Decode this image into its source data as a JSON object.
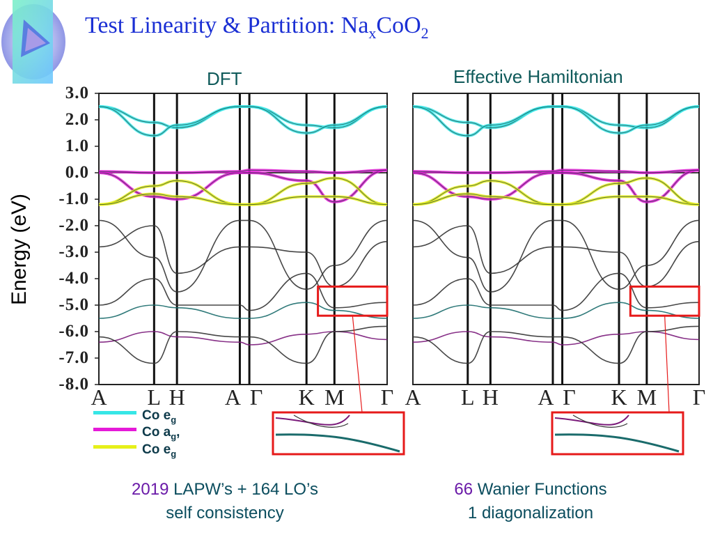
{
  "slide": {
    "title_main": "Test Linearity & Partition: Na",
    "title_sub_x": "x",
    "title_mid": "CoO",
    "title_sub_2": "2"
  },
  "panels": {
    "left_title": "DFT",
    "right_title": "Effective Hamiltonian"
  },
  "colors": {
    "co_eg_sigma": "#36e6e6",
    "co_a1g": "#e51ad8",
    "co_eg_pi": "#e6f01a",
    "zoom_box": "#e61a1a",
    "fermi": "#000000"
  },
  "legend": [
    {
      "label": "Co e",
      "sub": "g",
      "suffix": "",
      "color": "#36e6e6"
    },
    {
      "label": "Co a",
      "sub": "g",
      "suffix": ",",
      "color": "#e51ad8"
    },
    {
      "label": "Co e",
      "sub": "g",
      "suffix": "",
      "color": "#e6f01a"
    }
  ],
  "notes": {
    "left_num": "2019",
    "left_text": " LAPW’s + 164 LO’s",
    "left_line2": "self consistency",
    "right_num": "66",
    "right_text": " Wanier Functions",
    "right_line2": "1 diagonalization"
  },
  "chart_data": {
    "type": "line",
    "ylabel": "Energy (eV)",
    "ylim": [
      -8.0,
      3.0
    ],
    "y_ticks": [
      "3.0",
      "2.0",
      "1.0",
      "0.0",
      "-1.0",
      "-2.0",
      "-3.0",
      "-4.0",
      "-5.0",
      "-6.0",
      "-7.0",
      "-8.0"
    ],
    "fermi_level": 0.0,
    "kpoints": [
      "A",
      "L",
      "H",
      "A",
      "Γ",
      "K",
      "M",
      "Γ"
    ],
    "k_axis": [
      0.0,
      0.87,
      1.23,
      2.22,
      2.37,
      3.27,
      3.71,
      4.54
    ],
    "bands": [
      {
        "group": "Co eg sigma",
        "color": "#36e6e6",
        "values": [
          2.5,
          1.9,
          1.7,
          2.5,
          2.5,
          1.8,
          1.7,
          2.5
        ]
      },
      {
        "group": "Co eg sigma",
        "color": "#36e6e6",
        "values": [
          2.5,
          1.4,
          1.8,
          2.5,
          2.5,
          1.5,
          1.8,
          2.5
        ]
      },
      {
        "group": "Co a1g",
        "color": "#e51ad8",
        "values": [
          0.0,
          -0.9,
          -1.0,
          0.0,
          0.0,
          -0.3,
          -1.1,
          0.1
        ]
      },
      {
        "group": "Co a1g",
        "color": "#e51ad8",
        "values": [
          0.05,
          0.0,
          0.0,
          0.05,
          0.1,
          0.05,
          0.0,
          0.1
        ]
      },
      {
        "group": "Co eg pi",
        "color": "#e6f01a",
        "values": [
          -1.2,
          -0.5,
          -0.3,
          -1.2,
          -1.2,
          -0.4,
          -0.2,
          -1.2
        ]
      },
      {
        "group": "Co eg pi",
        "color": "#e6f01a",
        "values": [
          -1.2,
          -0.8,
          -0.9,
          -1.2,
          -1.2,
          -0.9,
          -0.9,
          -1.2
        ]
      },
      {
        "group": "O p",
        "color": "#333333",
        "values": [
          -1.8,
          -3.2,
          -4.5,
          -1.8,
          -1.8,
          -4.4,
          -3.5,
          -1.8
        ]
      },
      {
        "group": "O p",
        "color": "#333333",
        "values": [
          -2.8,
          -2.0,
          -3.8,
          -2.8,
          -2.8,
          -3.0,
          -4.3,
          -2.6
        ]
      },
      {
        "group": "O p",
        "color": "#333333",
        "values": [
          -5.0,
          -4.0,
          -5.0,
          -5.0,
          -5.2,
          -3.8,
          -5.1,
          -4.9
        ]
      },
      {
        "group": "O p",
        "color": "#1a6b6b",
        "values": [
          -5.5,
          -5.0,
          -5.1,
          -5.5,
          -5.5,
          -4.9,
          -5.2,
          -5.5
        ]
      },
      {
        "group": "O p",
        "color": "#7a1a7a",
        "values": [
          -6.4,
          -6.0,
          -6.2,
          -6.4,
          -6.5,
          -6.1,
          -6.0,
          -6.3
        ]
      },
      {
        "group": "O p",
        "color": "#333333",
        "values": [
          -6.2,
          -7.2,
          -6.0,
          -6.2,
          -6.2,
          -7.2,
          -6.0,
          -5.8
        ]
      }
    ],
    "zoom_region": {
      "k_range": [
        3.45,
        4.54
      ],
      "e_range": [
        -5.4,
        -4.3
      ]
    }
  }
}
